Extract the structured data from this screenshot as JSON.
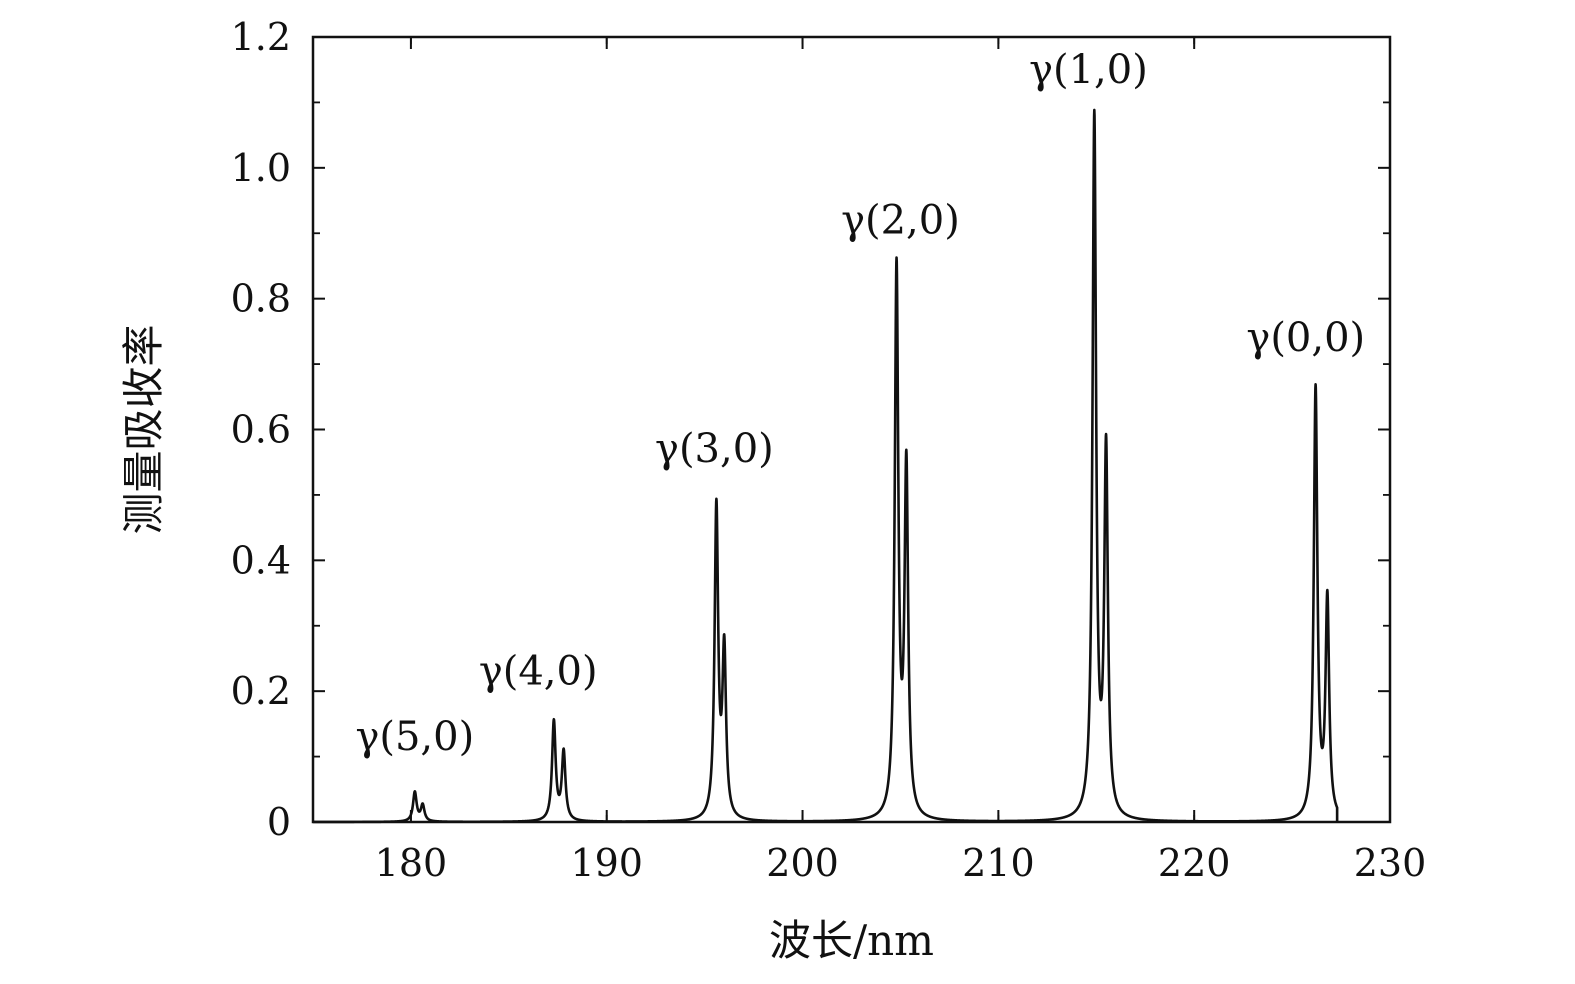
{
  "chart_data": {
    "type": "line",
    "title": "",
    "xlabel": "波长/nm",
    "ylabel": "测量吸收率",
    "xlim": [
      175,
      230
    ],
    "ylim": [
      0,
      1.2
    ],
    "xticks": [
      180,
      190,
      200,
      210,
      220,
      230
    ],
    "xtick_labels": [
      "180",
      "190",
      "200",
      "210",
      "220",
      "230"
    ],
    "yticks": [
      0,
      0.2,
      0.4,
      0.6,
      0.8,
      1.0,
      1.2
    ],
    "ytick_labels": [
      "0",
      "0.2",
      "0.4",
      "0.6",
      "0.8",
      "1.0",
      "1.2"
    ],
    "grid": false,
    "line_color": "#111111",
    "bands": [
      {
        "label": "γ(5,0)",
        "peaks": [
          {
            "x": 180.2,
            "y": 0.045
          },
          {
            "x": 180.6,
            "y": 0.025
          }
        ],
        "label_x": 180.2,
        "label_y": 0.11
      },
      {
        "label": "γ(4,0)",
        "peaks": [
          {
            "x": 187.3,
            "y": 0.152
          },
          {
            "x": 187.8,
            "y": 0.105
          }
        ],
        "label_x": 186.5,
        "label_y": 0.21
      },
      {
        "label": "γ(3,0)",
        "peaks": [
          {
            "x": 195.6,
            "y": 0.476
          },
          {
            "x": 196.0,
            "y": 0.253
          }
        ],
        "label_x": 195.5,
        "label_y": 0.55
      },
      {
        "label": "γ(2,0)",
        "peaks": [
          {
            "x": 204.8,
            "y": 0.838
          },
          {
            "x": 205.3,
            "y": 0.53
          }
        ],
        "label_x": 205.0,
        "label_y": 0.9
      },
      {
        "label": "γ(1,0)",
        "peaks": [
          {
            "x": 214.9,
            "y": 1.07
          },
          {
            "x": 215.5,
            "y": 0.558
          }
        ],
        "label_x": 214.6,
        "label_y": 1.13
      },
      {
        "label": "γ(0,0)",
        "peaks": [
          {
            "x": 226.2,
            "y": 0.658
          },
          {
            "x": 226.8,
            "y": 0.333
          }
        ],
        "label_x": 225.7,
        "label_y": 0.72
      }
    ]
  }
}
